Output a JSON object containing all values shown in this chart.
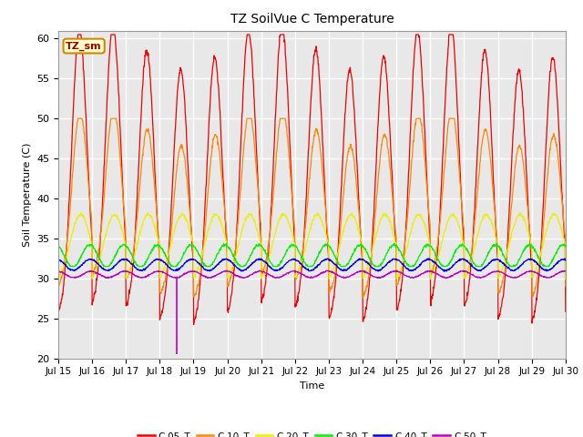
{
  "title": "TZ SoilVue C Temperature",
  "ylabel": "Soil Temperature (C)",
  "xlabel": "Time",
  "ylim": [
    20,
    61
  ],
  "xlim": [
    0,
    15
  ],
  "annotation_text": "TZ_sm",
  "annotation_bg": "#ffffcc",
  "annotation_border": "#cc8800",
  "plot_bg": "#e8e8e8",
  "fig_bg": "#ffffff",
  "grid_color": "#ffffff",
  "series_order": [
    "C-05_T",
    "C-10_T",
    "C-20_T",
    "C-30_T",
    "C-40_T",
    "C-50_T"
  ],
  "colors": {
    "C-05_T": "#ee0000",
    "C-10_T": "#ff8800",
    "C-20_T": "#eeee00",
    "C-30_T": "#00ee00",
    "C-40_T": "#0000dd",
    "C-50_T": "#bb00bb"
  },
  "xtick_labels": [
    "Jul 15",
    "Jul 16",
    "Jul 17",
    "Jul 18",
    "Jul 19",
    "Jul 20",
    "Jul 21",
    "Jul 22",
    "Jul 23",
    "Jul 24",
    "Jul 25",
    "Jul 26",
    "Jul 27",
    "Jul 28",
    "Jul 29",
    "Jul 30"
  ],
  "ytick_vals": [
    20,
    25,
    30,
    35,
    40,
    45,
    50,
    55,
    60
  ],
  "num_points": 1500,
  "days": 15
}
